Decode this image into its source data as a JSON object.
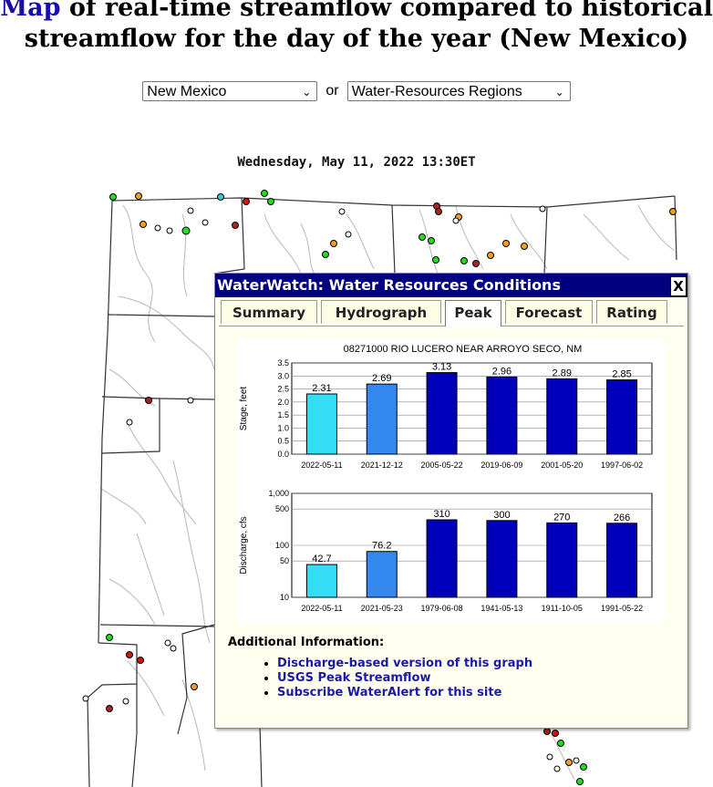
{
  "header": {
    "link_text": "Map",
    "title_rest_line1": " of real-time streamflow compared to historical",
    "title_line2": "streamflow for the day of the year (New Mexico)"
  },
  "selectors": {
    "state_value": "New Mexico",
    "or_text": "or",
    "region_value": "Water-Resources Regions"
  },
  "timestamp": "Wednesday, May 11, 2022 13:30ET",
  "colors": {
    "accent": "#000080",
    "bar_light": "#33ddf5",
    "bar_mid": "#3388ee",
    "bar_dark": "#0000bb"
  },
  "popup": {
    "title": "WaterWatch: Water Resources Conditions",
    "close_label": "X",
    "tabs": [
      "Summary",
      "Hydrograph",
      "Peak",
      "Forecast",
      "Rating"
    ],
    "active_tab": "Peak",
    "info_title": "Additional Information:",
    "links": [
      "Discharge-based version of this graph",
      "USGS Peak Streamflow",
      "Subscribe WaterAlert for this site"
    ]
  },
  "chart_data": [
    {
      "type": "bar",
      "title": "08271000 RIO LUCERO NEAR ARROYO SECO, NM",
      "ylabel": "Stage, feet",
      "categories": [
        "2022-05-11",
        "2021-12-12",
        "2005-05-22",
        "2019-06-09",
        "2001-05-20",
        "1997-06-02"
      ],
      "values": [
        2.31,
        2.69,
        3.13,
        2.96,
        2.89,
        2.85
      ],
      "value_labels": [
        "2.31",
        "2.69",
        "3.13",
        "2.96",
        "2.89",
        "2.85"
      ],
      "ylim": [
        0,
        3.5
      ],
      "yticks": [
        "0.0",
        "0.5",
        "1.0",
        "1.5",
        "2.0",
        "2.5",
        "3.0",
        "3.5"
      ]
    },
    {
      "type": "bar",
      "ylabel": "Discharge, cfs",
      "log_scale": true,
      "categories": [
        "2022-05-11",
        "2021-05-23",
        "1979-06-08",
        "1941-05-13",
        "1911-10-05",
        "1991-05-22"
      ],
      "values": [
        42.7,
        76.2,
        310,
        300,
        270,
        266
      ],
      "value_labels": [
        "42.7",
        "76.2",
        "310",
        "300",
        "270",
        "266"
      ],
      "ylim": [
        10,
        1000
      ],
      "yticks": [
        "10",
        "50",
        "100",
        "500",
        "1,000"
      ]
    }
  ]
}
